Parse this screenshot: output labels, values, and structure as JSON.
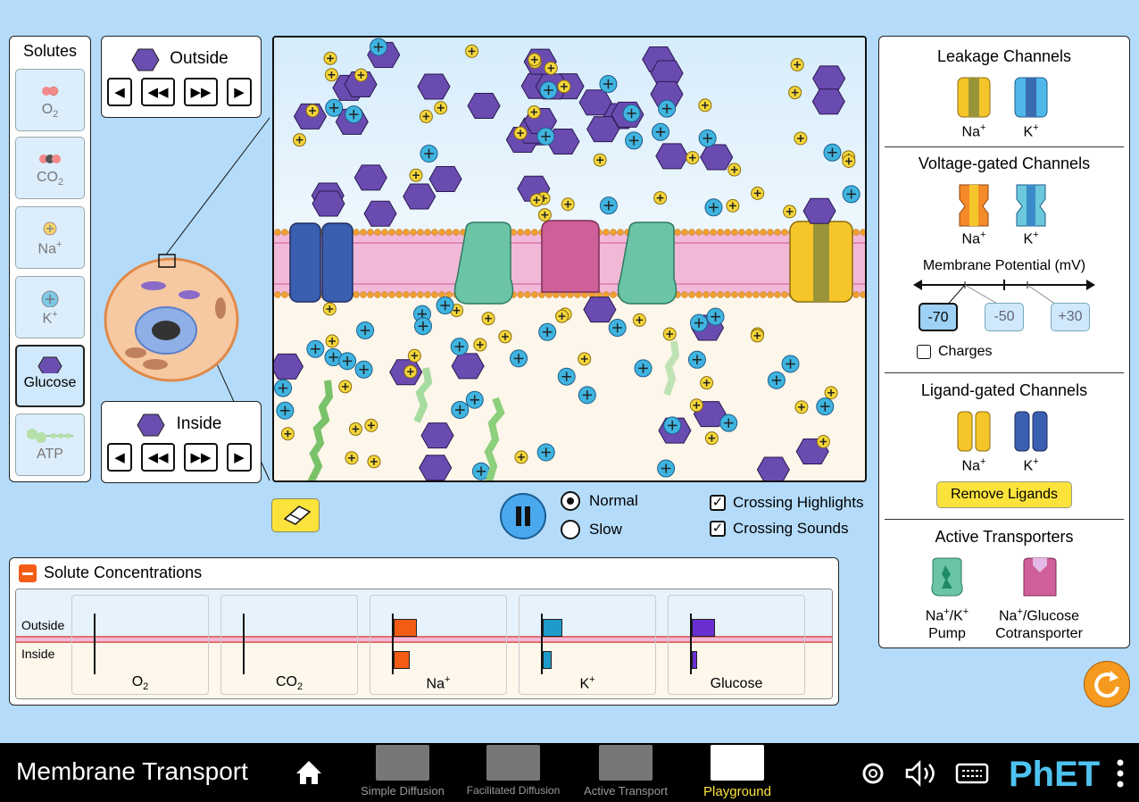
{
  "solutes": {
    "title": "Solutes",
    "items": [
      {
        "name": "O",
        "sub": "2"
      },
      {
        "name": "CO",
        "sub": "2"
      },
      {
        "name": "Na",
        "sup": "+"
      },
      {
        "name": "K",
        "sup": "+"
      },
      {
        "name": "Glucose"
      },
      {
        "name": "ATP"
      }
    ]
  },
  "outside_nav": {
    "label": "Outside"
  },
  "inside_nav": {
    "label": "Inside"
  },
  "controls": {
    "normal": "Normal",
    "slow": "Slow",
    "crossing_highlights": "Crossing Highlights",
    "crossing_sounds": "Crossing Sounds"
  },
  "right_panel": {
    "leakage_title": "Leakage Channels",
    "voltage_title": "Voltage-gated Channels",
    "membrane_potential_label": "Membrane Potential (mV)",
    "mv_options": [
      "-70",
      "-50",
      "+30"
    ],
    "charges_label": "Charges",
    "ligand_title": "Ligand-gated Channels",
    "remove_ligands": "Remove Ligands",
    "active_title": "Active Transporters",
    "na": "Na",
    "k": "K",
    "plus": "+",
    "pump_a": "Na",
    "pump_b": "/K",
    "pump_c": "Pump",
    "cot_a": "Na",
    "cot_b": "/Glucose",
    "cot_c": "Cotransporter"
  },
  "concentrations": {
    "title": "Solute Concentrations",
    "outside_label": "Outside",
    "inside_label": "Inside",
    "bars": [
      {
        "label": "O",
        "sub": "2",
        "outside": 0,
        "inside": 0,
        "color": "#ffffff"
      },
      {
        "label": "CO",
        "sub": "2",
        "outside": 0,
        "inside": 0,
        "color": "#ffffff"
      },
      {
        "label": "Na",
        "sup": "+",
        "outside": 26,
        "inside": 18,
        "color": "#f25c14"
      },
      {
        "label": "K",
        "sup": "+",
        "outside": 22,
        "inside": 10,
        "color": "#1e9bc9"
      },
      {
        "label": "Glucose",
        "outside": 26,
        "inside": 6,
        "color": "#6a2fd0"
      }
    ]
  },
  "bottom": {
    "title": "Membrane Transport",
    "tabs": [
      "Simple Diffusion",
      "Facilitated Diffusion",
      "Active Transport",
      "Playground"
    ]
  }
}
